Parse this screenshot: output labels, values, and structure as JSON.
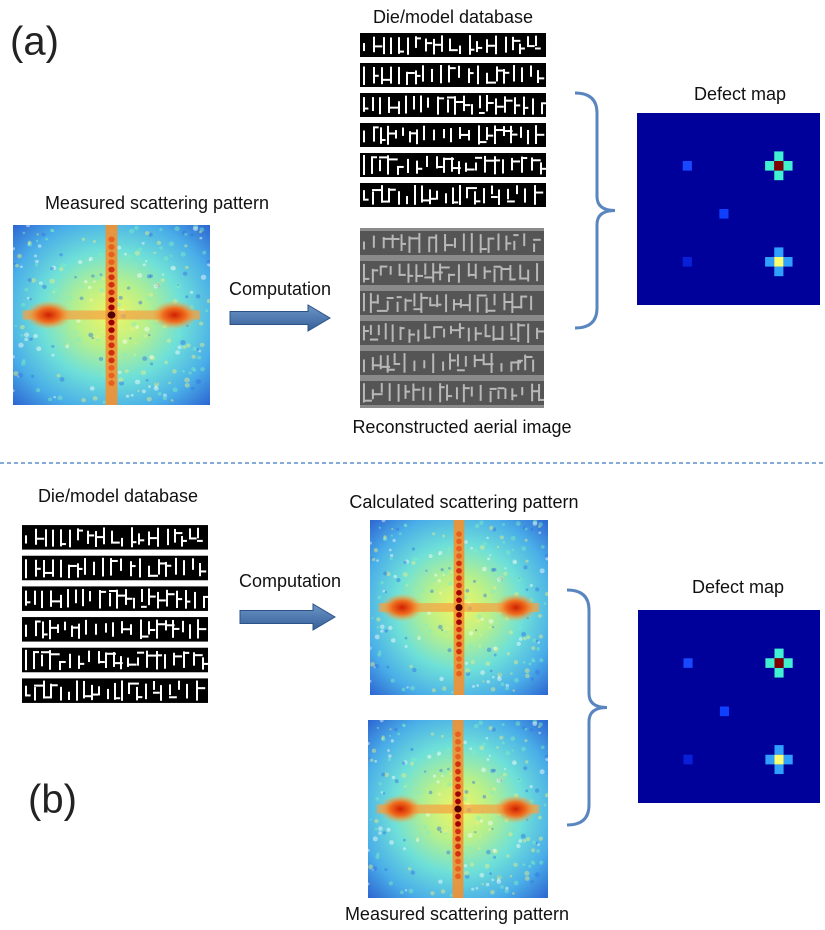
{
  "panel_a": {
    "label": "(a)",
    "database_title": "Die/model database",
    "measured_title": "Measured scattering pattern",
    "arrow_label": "Computation",
    "reconstructed_title": "Reconstructed aerial image",
    "defect_title": "Defect map"
  },
  "panel_b": {
    "label": "(b)",
    "database_title": "Die/model database",
    "calculated_title": "Calculated scattering pattern",
    "arrow_label": "Computation",
    "measured_title": "Measured scattering pattern",
    "defect_title": "Defect map"
  }
}
